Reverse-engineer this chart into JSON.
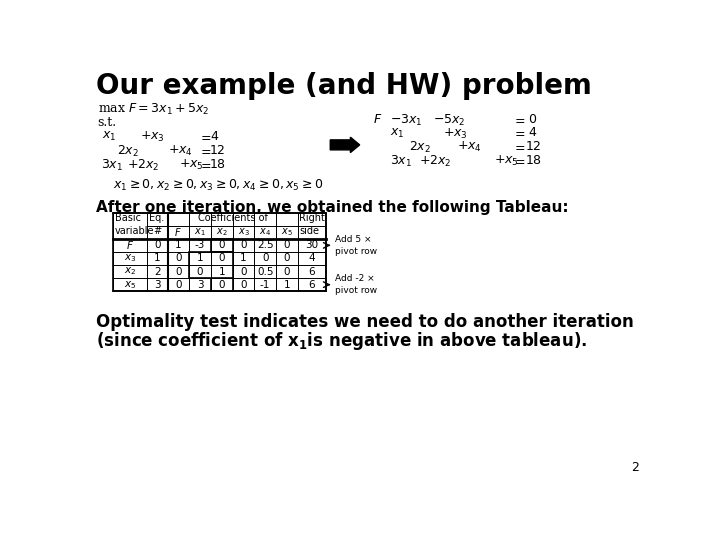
{
  "title": "Our example (and HW) problem",
  "bg_color": "#ffffff",
  "title_color": "#000000",
  "subtitle": "After one iteration, we obtained the following Tableau:",
  "bottom_text_line1": "Optimality test indicates we need to do another iteration",
  "bottom_text_line2": "(since coefficient of x₁is negative in above tableau).",
  "page_num": "2",
  "table_data": [
    [
      "F",
      "0",
      "1",
      "-3",
      "0",
      "0",
      "2.5",
      "0",
      "30"
    ],
    [
      "x3",
      "1",
      "0",
      "1",
      "0",
      "1",
      "0",
      "0",
      "4"
    ],
    [
      "x2",
      "2",
      "0",
      "0",
      "1",
      "0",
      "0.5",
      "0",
      "6"
    ],
    [
      "x5",
      "3",
      "0",
      "3",
      "0",
      "0",
      "-1",
      "1",
      "6"
    ]
  ],
  "annotation1_line1": "Add 5 ×",
  "annotation1_line2": "pivot row",
  "annotation2_line1": "Add -2 ×",
  "annotation2_line2": "pivot row"
}
